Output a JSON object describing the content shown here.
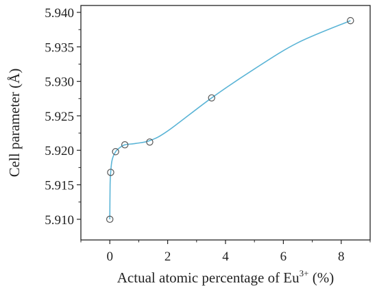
{
  "chart_data": {
    "type": "scatter",
    "xlabel": "Actual atomic percentage of Eu",
    "xlabel_superscript": "3+",
    "xlabel_suffix": " (%)",
    "ylabel": "Cell parameter (Å)",
    "xlim": [
      -1,
      9
    ],
    "ylim": [
      5.907,
      5.941
    ],
    "x_ticks": [
      0,
      2,
      4,
      6,
      8
    ],
    "x_tick_labels": [
      "0",
      "2",
      "4",
      "6",
      "8"
    ],
    "y_ticks": [
      5.91,
      5.915,
      5.92,
      5.925,
      5.93,
      5.935,
      5.94
    ],
    "y_tick_labels": [
      "5.910",
      "5.915",
      "5.920",
      "5.925",
      "5.930",
      "5.935",
      "5.940"
    ],
    "grid": false,
    "series": [
      {
        "points": [
          {
            "x": 0.0,
            "y": 5.91
          },
          {
            "x": 0.03,
            "y": 5.9168
          },
          {
            "x": 0.2,
            "y": 5.9198
          },
          {
            "x": 0.52,
            "y": 5.9208
          },
          {
            "x": 1.38,
            "y": 5.9212
          },
          {
            "x": 3.52,
            "y": 5.9276
          },
          {
            "x": 8.32,
            "y": 5.9388
          }
        ],
        "marker": "open-circle",
        "marker_color": "#555555"
      }
    ],
    "fit_line": {
      "color": "#5ab4d6",
      "points": [
        {
          "x": 0.0,
          "y": 5.91
        },
        {
          "x": 0.01,
          "y": 5.915
        },
        {
          "x": 0.03,
          "y": 5.9168
        },
        {
          "x": 0.08,
          "y": 5.9186
        },
        {
          "x": 0.2,
          "y": 5.9198
        },
        {
          "x": 0.35,
          "y": 5.9204
        },
        {
          "x": 0.52,
          "y": 5.9208
        },
        {
          "x": 0.9,
          "y": 5.921
        },
        {
          "x": 1.38,
          "y": 5.9214
        },
        {
          "x": 2.0,
          "y": 5.9228
        },
        {
          "x": 3.52,
          "y": 5.9276
        },
        {
          "x": 5.0,
          "y": 5.9318
        },
        {
          "x": 6.5,
          "y": 5.9356
        },
        {
          "x": 8.32,
          "y": 5.9388
        }
      ]
    }
  }
}
